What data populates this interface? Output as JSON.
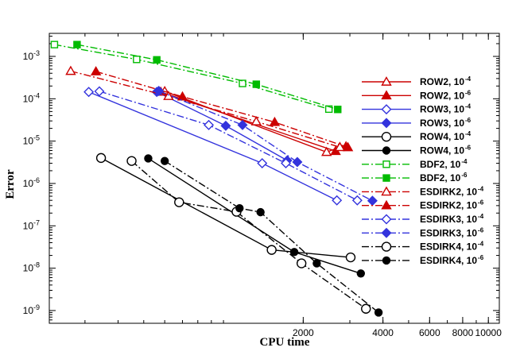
{
  "chart_data": {
    "type": "line",
    "title": "",
    "xlabel": "CPU time",
    "ylabel": "Error",
    "xscale": "log",
    "yscale": "log",
    "xlim": [
      220,
      11000
    ],
    "ylim": [
      5e-10,
      0.0035
    ],
    "grid": false,
    "legend_position": "right",
    "x_ticks": [
      {
        "value": 2000,
        "label": "2000"
      },
      {
        "value": 4000,
        "label": "4000"
      },
      {
        "value": 6000,
        "label": "6000"
      },
      {
        "value": 8000,
        "label": "8000"
      },
      {
        "value": 10000,
        "label": "10000"
      }
    ],
    "y_ticks": [
      {
        "value": 0.001,
        "label": "10",
        "exp": "-3"
      },
      {
        "value": 0.0001,
        "label": "10",
        "exp": "-4"
      },
      {
        "value": 1e-05,
        "label": "10",
        "exp": "-5"
      },
      {
        "value": 1e-06,
        "label": "10",
        "exp": "-6"
      },
      {
        "value": 1e-07,
        "label": "10",
        "exp": "-7"
      },
      {
        "value": 1e-08,
        "label": "10",
        "exp": "-8"
      },
      {
        "value": 1e-09,
        "label": "10",
        "exp": "-9"
      }
    ],
    "series": [
      {
        "name": "ROW2, 10",
        "exp": "-4",
        "color": "#cc0000",
        "dash": "solid",
        "marker": "triangle",
        "filled": false,
        "x": [
          600,
          2450,
          2750
        ],
        "y": [
          0.00015,
          5.5e-06,
          7.2e-06
        ]
      },
      {
        "name": "ROW2, 10",
        "exp": "-6",
        "color": "#cc0000",
        "dash": "solid",
        "marker": "triangle",
        "filled": true,
        "x": [
          580,
          2650,
          2900
        ],
        "y": [
          0.000145,
          5.8e-06,
          7.5e-06
        ]
      },
      {
        "name": "ROW3, 10",
        "exp": "-4",
        "color": "#3333dd",
        "dash": "solid",
        "marker": "diamond",
        "filled": false,
        "x": [
          310,
          1400,
          2680
        ],
        "y": [
          0.000145,
          3e-06,
          4e-07
        ]
      },
      {
        "name": "ROW3, 10",
        "exp": "-6",
        "color": "#3333dd",
        "dash": "solid",
        "marker": "diamond",
        "filled": true,
        "x": [
          560,
          1020,
          1740
        ],
        "y": [
          0.000145,
          2.3e-05,
          3.5e-06
        ]
      },
      {
        "name": "ROW4, 10",
        "exp": "-4",
        "color": "#000000",
        "dash": "solid",
        "marker": "circle",
        "filled": false,
        "x": [
          345,
          1520,
          3020
        ],
        "y": [
          4e-06,
          2.7e-08,
          1.8e-08
        ]
      },
      {
        "name": "ROW4, 10",
        "exp": "-6",
        "color": "#000000",
        "dash": "solid",
        "marker": "circle",
        "filled": true,
        "x": [
          520,
          1850,
          3300
        ],
        "y": [
          3.9e-06,
          2.4e-08,
          7.5e-09
        ]
      },
      {
        "name": "BDF2, 10",
        "exp": "-4",
        "color": "#00bb00",
        "dash": "dashdot",
        "marker": "square",
        "filled": false,
        "x": [
          230,
          470,
          1180,
          2500
        ],
        "y": [
          0.0019,
          0.00085,
          0.00023,
          5.7e-05
        ]
      },
      {
        "name": "BDF2, 10",
        "exp": "-6",
        "color": "#00bb00",
        "dash": "dashdot",
        "marker": "square",
        "filled": true,
        "x": [
          280,
          560,
          1330,
          2700
        ],
        "y": [
          0.0019,
          0.00083,
          0.00022,
          5.6e-05
        ]
      },
      {
        "name": "ESDIRK2, 10",
        "exp": "-4",
        "color": "#cc0000",
        "dash": "dashdot",
        "marker": "triangle",
        "filled": false,
        "x": [
          265,
          620,
          1330,
          2750
        ],
        "y": [
          0.00045,
          0.000115,
          2.9e-05,
          7.2e-06
        ]
      },
      {
        "name": "ESDIRK2, 10",
        "exp": "-6",
        "color": "#cc0000",
        "dash": "dashdot",
        "marker": "triangle",
        "filled": true,
        "x": [
          330,
          700,
          1560,
          2950
        ],
        "y": [
          0.00044,
          0.000112,
          2.8e-05,
          7.1e-06
        ]
      },
      {
        "name": "ESDIRK3, 10",
        "exp": "-4",
        "color": "#3333dd",
        "dash": "dashdot",
        "marker": "diamond",
        "filled": false,
        "x": [
          340,
          880,
          1720,
          3200
        ],
        "y": [
          0.00015,
          2.4e-05,
          3e-06,
          4e-07
        ]
      },
      {
        "name": "ESDIRK3, 10",
        "exp": "-6",
        "color": "#3333dd",
        "dash": "dashdot",
        "marker": "diamond",
        "filled": true,
        "x": [
          570,
          1180,
          1900,
          3650
        ],
        "y": [
          0.000153,
          2.4e-05,
          3.2e-06,
          3.9e-07
        ]
      },
      {
        "name": "ESDIRK4, 10",
        "exp": "-4",
        "color": "#000000",
        "dash": "dashdot",
        "marker": "circle",
        "filled": false,
        "x": [
          450,
          680,
          1120,
          1970,
          3450
        ],
        "y": [
          3.4e-06,
          3.6e-07,
          2.15e-07,
          1.3e-08,
          1.1e-09
        ]
      },
      {
        "name": "ESDIRK4, 10",
        "exp": "-6",
        "color": "#000000",
        "dash": "dashdot",
        "marker": "circle",
        "filled": true,
        "x": [
          600,
          1150,
          1380,
          2250,
          3850
        ],
        "y": [
          3.4e-06,
          2.6e-07,
          2.1e-07,
          1.3e-08,
          9e-10
        ]
      }
    ]
  }
}
